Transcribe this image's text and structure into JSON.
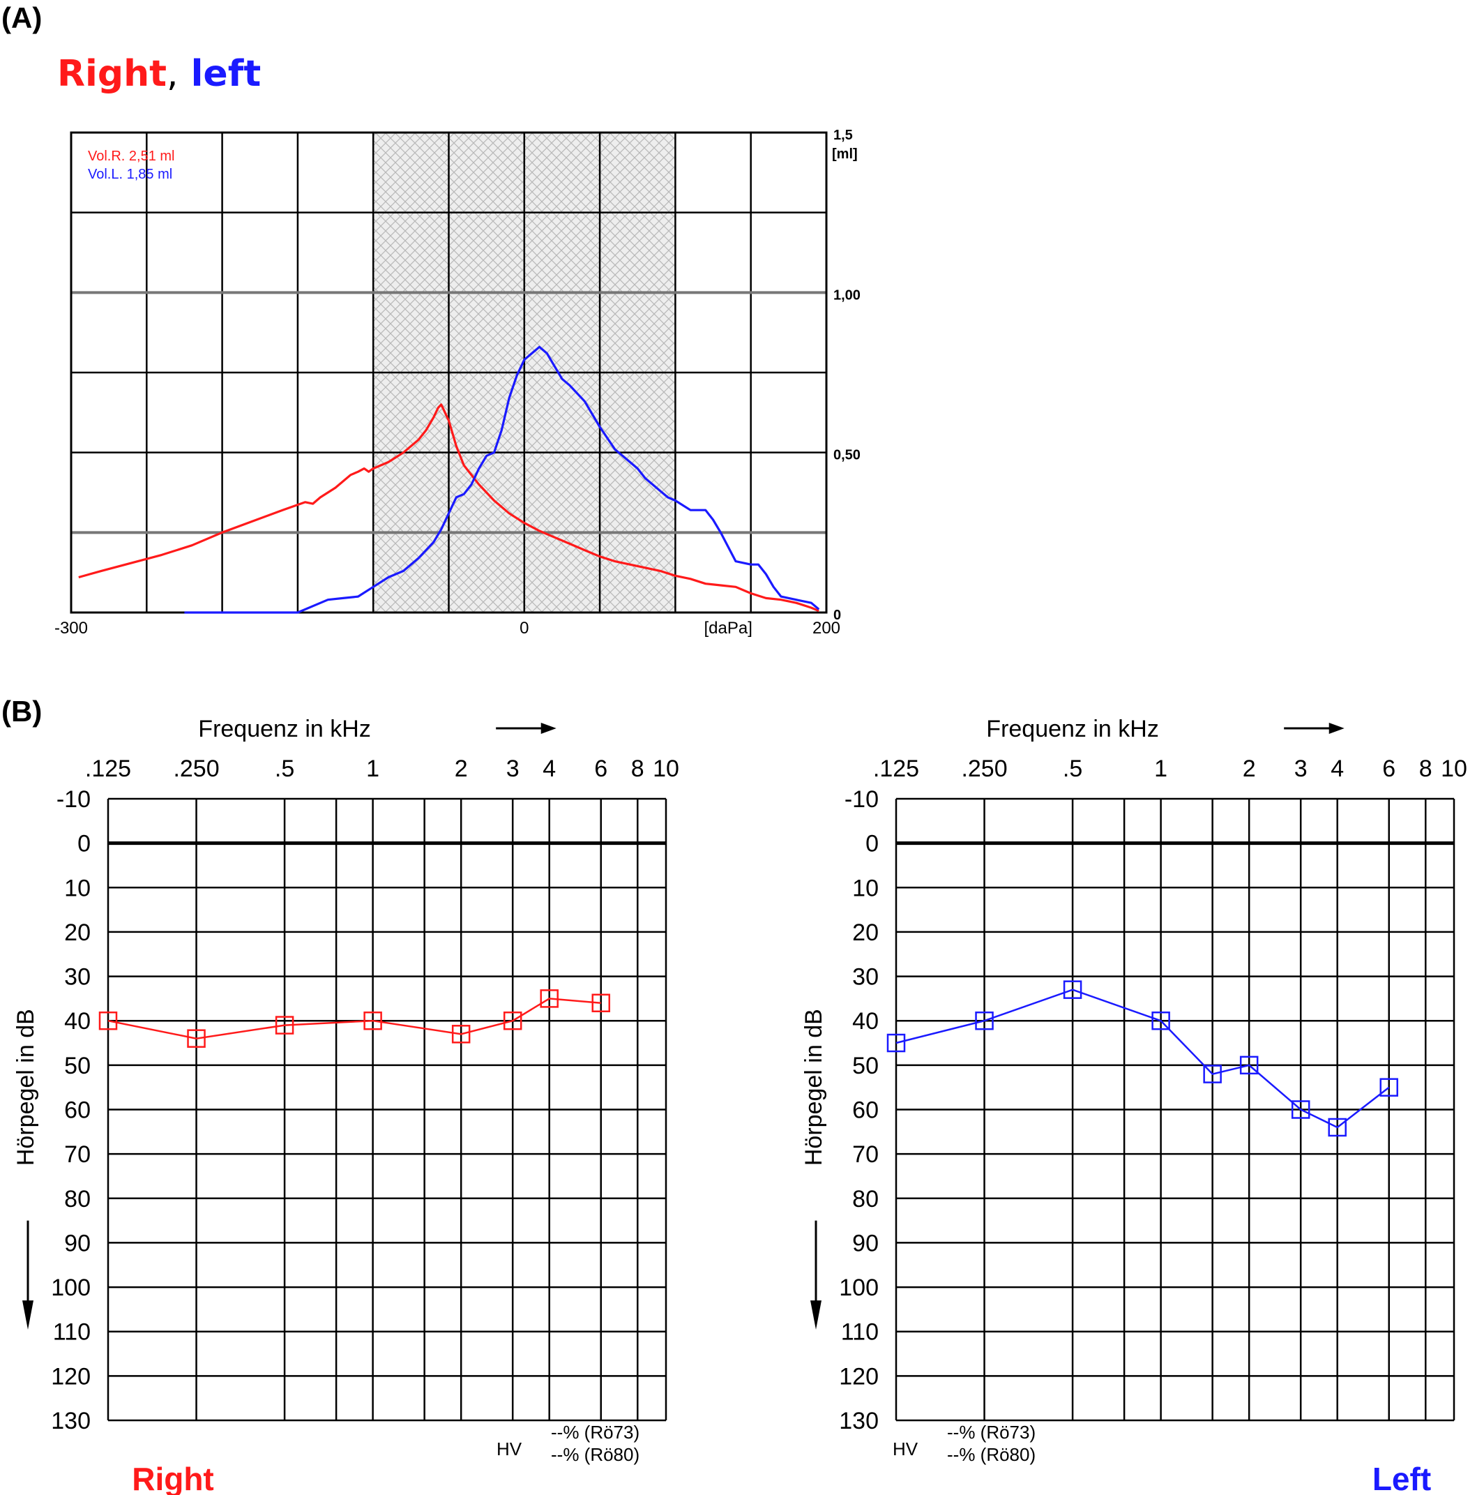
{
  "panel_a_label": "(A)",
  "panel_b_label": "(B)",
  "legend_title": {
    "right": "Right",
    "comma": ",",
    "left": "left"
  },
  "colors": {
    "right": "#ff1a1a",
    "left": "#1a1aff",
    "grid": "#000000",
    "gridGray": "#777777"
  },
  "chart_data": [
    {
      "type": "line",
      "xlim": [
        -300,
        200
      ],
      "ylim": [
        0,
        1.5
      ],
      "x_ticks": [
        "-300",
        "0",
        "200"
      ],
      "x_unit": "[daPa]",
      "y_ticks": [
        {
          "value": 1.5,
          "label": "1,5"
        },
        {
          "value": 1.0,
          "label": "1,00"
        },
        {
          "value": 0.5,
          "label": "0,50"
        },
        {
          "value": 0,
          "label": "0"
        }
      ],
      "y_unit": "[ml]",
      "annotations": [
        "Vol.R. 2,51 ml",
        "Vol.L. 1,85 ml"
      ],
      "shaded_range": [
        -100,
        100
      ],
      "series": [
        {
          "color": "#ff1a1a",
          "x": [
            -295,
            -280,
            -260,
            -240,
            -220,
            -200,
            -180,
            -160,
            -145,
            -140,
            -135,
            -125,
            -115,
            -110,
            -106,
            -103,
            -100,
            -90,
            -80,
            -70,
            -65,
            -60,
            -57,
            -55,
            -50,
            -45,
            -40,
            -30,
            -20,
            -10,
            0,
            10,
            20,
            30,
            40,
            50,
            60,
            70,
            80,
            90,
            100,
            110,
            120,
            130,
            140,
            150,
            160,
            170,
            180,
            190,
            195
          ],
          "y": [
            0.11,
            0.13,
            0.155,
            0.18,
            0.21,
            0.25,
            0.285,
            0.32,
            0.345,
            0.34,
            0.36,
            0.39,
            0.43,
            0.44,
            0.45,
            0.44,
            0.45,
            0.47,
            0.5,
            0.54,
            0.57,
            0.61,
            0.64,
            0.65,
            0.6,
            0.52,
            0.46,
            0.4,
            0.35,
            0.31,
            0.28,
            0.255,
            0.235,
            0.215,
            0.195,
            0.175,
            0.16,
            0.15,
            0.14,
            0.13,
            0.115,
            0.105,
            0.09,
            0.085,
            0.08,
            0.06,
            0.045,
            0.04,
            0.03,
            0.015,
            0.005
          ]
        },
        {
          "color": "#1a1aff",
          "x": [
            -225,
            -180,
            -150,
            -140,
            -130,
            -120,
            -110,
            -100,
            -90,
            -80,
            -70,
            -60,
            -55,
            -50,
            -45,
            -40,
            -35,
            -30,
            -25,
            -20,
            -15,
            -10,
            -5,
            0,
            5,
            10,
            15,
            20,
            25,
            30,
            40,
            50,
            60,
            70,
            75,
            80,
            90,
            95,
            100,
            110,
            115,
            120,
            125,
            130,
            140,
            150,
            155,
            160,
            165,
            170,
            180,
            190,
            195
          ],
          "y": [
            0,
            0,
            0,
            0.02,
            0.04,
            0.045,
            0.05,
            0.08,
            0.11,
            0.13,
            0.17,
            0.22,
            0.26,
            0.31,
            0.36,
            0.37,
            0.4,
            0.45,
            0.49,
            0.5,
            0.57,
            0.67,
            0.74,
            0.79,
            0.81,
            0.83,
            0.81,
            0.77,
            0.73,
            0.71,
            0.66,
            0.58,
            0.51,
            0.47,
            0.45,
            0.42,
            0.38,
            0.36,
            0.35,
            0.32,
            0.32,
            0.32,
            0.29,
            0.25,
            0.16,
            0.15,
            0.15,
            0.12,
            0.08,
            0.05,
            0.04,
            0.03,
            0.01
          ]
        }
      ]
    },
    {
      "type": "line",
      "side": "Right",
      "color": "#ff1a1a",
      "title": "Frequenz in kHz",
      "ylabel": "Hörpegel in dB",
      "freq_labels": [
        ".125",
        ".250",
        ".5",
        "1",
        "2",
        "3",
        "4",
        "6",
        "8",
        "10"
      ],
      "y_labels": [
        "-10",
        "0",
        "10",
        "20",
        "30",
        "40",
        "50",
        "60",
        "70",
        "80",
        "90",
        "100",
        "110",
        "120",
        "130"
      ],
      "x": [
        ".125",
        ".250",
        ".5",
        "1",
        "2",
        "3",
        "4",
        "6"
      ],
      "y": [
        40,
        44,
        41,
        40,
        43,
        40,
        35,
        36
      ],
      "footer": {
        "hv": "HV",
        "line1": "--% (Rö73)",
        "line2": "--% (Rö80)"
      }
    },
    {
      "type": "line",
      "side": "Left",
      "color": "#1a1aff",
      "title": "Frequenz in kHz",
      "ylabel": "Hörpegel in dB",
      "freq_labels": [
        ".125",
        ".250",
        ".5",
        "1",
        "2",
        "3",
        "4",
        "6",
        "8",
        "10"
      ],
      "y_labels": [
        "-10",
        "0",
        "10",
        "20",
        "30",
        "40",
        "50",
        "60",
        "70",
        "80",
        "90",
        "100",
        "110",
        "120",
        "130"
      ],
      "x": [
        ".125",
        ".250",
        ".5",
        "1",
        "1.5",
        "2",
        "3",
        "4",
        "6"
      ],
      "y": [
        45,
        40,
        33,
        40,
        52,
        50,
        60,
        64,
        55
      ],
      "footer": {
        "hv": "HV",
        "line1": "--% (Rö73)",
        "line2": "--% (Rö80)"
      }
    }
  ]
}
